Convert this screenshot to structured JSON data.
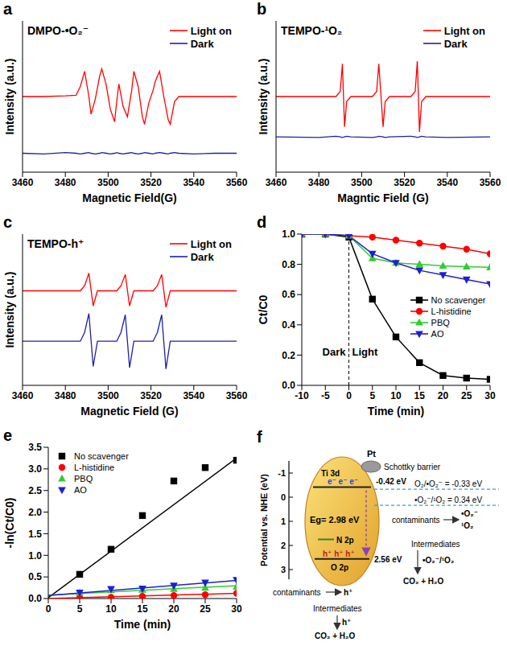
{
  "chart_data": [
    {
      "panel": "a",
      "type": "line",
      "annotations": [
        "DMPO-•O₂⁻"
      ],
      "xlabel": "Magnetic Field(G)",
      "ylabel": "Intensity (a.u.)",
      "x": [
        3460,
        3470,
        3480,
        3485,
        3487,
        3489,
        3491,
        3492,
        3494,
        3496,
        3497,
        3499,
        3501,
        3503,
        3504,
        3505,
        3507,
        3509,
        3511,
        3512,
        3514,
        3516,
        3517,
        3519,
        3521,
        3522,
        3524,
        3526,
        3528,
        3529,
        3531,
        3533,
        3540,
        3550,
        3560
      ],
      "xlim": [
        3460,
        3560
      ],
      "xticks": [
        3460,
        3480,
        3500,
        3520,
        3540,
        3560
      ],
      "ylim": [
        0,
        12
      ],
      "tick_labels": "x",
      "legend": "upper right",
      "series": [
        {
          "name": "Light on",
          "color": "#ff0000",
          "values": [
            6.0,
            6.0,
            6.05,
            6.1,
            6.8,
            8.0,
            6.0,
            4.6,
            5.8,
            7.6,
            8.2,
            7.0,
            5.0,
            4.0,
            5.6,
            7.0,
            5.2,
            4.4,
            6.5,
            8.0,
            6.8,
            4.4,
            3.8,
            5.5,
            6.5,
            7.2,
            8.0,
            6.0,
            4.2,
            3.8,
            5.6,
            6.0,
            6.0,
            6.0,
            6.0
          ]
        },
        {
          "name": "Dark",
          "color": "#1f1fa8",
          "values": [
            1.5,
            1.45,
            1.55,
            1.5,
            1.45,
            1.5,
            1.55,
            1.5,
            1.45,
            1.5,
            1.55,
            1.5,
            1.45,
            1.5,
            1.55,
            1.5,
            1.45,
            1.5,
            1.55,
            1.5,
            1.45,
            1.5,
            1.55,
            1.5,
            1.45,
            1.5,
            1.55,
            1.5,
            1.45,
            1.5,
            1.55,
            1.5,
            1.45,
            1.5,
            1.5
          ]
        }
      ]
    },
    {
      "panel": "b",
      "type": "line",
      "annotations": [
        "TEMPO-¹O₂"
      ],
      "xlabel": "Magntic Field (G)",
      "ylabel": "Intensity (a.u.)",
      "x": [
        3460,
        3480,
        3488,
        3490,
        3491,
        3492,
        3493,
        3495,
        3505,
        3507,
        3508,
        3510,
        3511,
        3513,
        3523,
        3525,
        3526,
        3527,
        3528,
        3530,
        3540,
        3560
      ],
      "xlim": [
        3460,
        3560
      ],
      "xticks": [
        3460,
        3480,
        3500,
        3520,
        3540,
        3560
      ],
      "ylim": [
        0,
        12
      ],
      "tick_labels": "x",
      "legend": "upper right",
      "series": [
        {
          "name": "Light on",
          "color": "#ff0000",
          "values": [
            6,
            6,
            6,
            6.4,
            8.6,
            3.6,
            5.6,
            6,
            6,
            6.4,
            8.6,
            3.6,
            5.6,
            6,
            6,
            6.4,
            8.8,
            3.2,
            5.6,
            6,
            6,
            6
          ]
        },
        {
          "name": "Dark",
          "color": "#1f1fa8",
          "values": [
            2.8,
            2.75,
            2.85,
            2.8,
            2.75,
            2.8,
            2.85,
            2.8,
            2.75,
            2.8,
            2.85,
            2.8,
            2.75,
            2.8,
            2.85,
            2.8,
            2.75,
            2.8,
            2.85,
            2.8,
            2.75,
            2.8
          ]
        }
      ]
    },
    {
      "panel": "c",
      "type": "line",
      "annotations": [
        "TEMPO-h⁺"
      ],
      "xlabel": "Magnetic Field (G)",
      "ylabel": "Intensity (a.u.)",
      "x": [
        3460,
        3480,
        3487,
        3489,
        3491,
        3493,
        3495,
        3500,
        3504,
        3506,
        3508,
        3510,
        3512,
        3517,
        3521,
        3523,
        3525,
        3527,
        3529,
        3535,
        3560
      ],
      "xlim": [
        3460,
        3560
      ],
      "xticks": [
        3460,
        3480,
        3500,
        3520,
        3540,
        3560
      ],
      "ylim": [
        0,
        12
      ],
      "tick_labels": "x",
      "legend": "upper right",
      "series": [
        {
          "name": "Light on",
          "color": "#ff0000",
          "values": [
            7.5,
            7.5,
            7.5,
            7.9,
            8.9,
            6.3,
            7.5,
            7.5,
            7.5,
            7.9,
            8.8,
            6.3,
            7.5,
            7.5,
            7.5,
            7.9,
            8.8,
            6.2,
            7.5,
            7.5,
            7.5
          ]
        },
        {
          "name": "Dark",
          "color": "#1f1fa8",
          "values": [
            3.5,
            3.5,
            3.5,
            4.2,
            5.7,
            1.5,
            3.5,
            3.5,
            3.5,
            4.2,
            5.6,
            1.4,
            3.5,
            3.5,
            3.5,
            4.2,
            5.6,
            1.3,
            3.5,
            3.5,
            3.5
          ]
        }
      ]
    },
    {
      "panel": "d",
      "type": "line",
      "annotations": [
        "Dark",
        "Light"
      ],
      "divider": 0,
      "xlabel": "Time (min)",
      "ylabel": "Ct/C0",
      "x": [
        -10,
        -5,
        0,
        5,
        10,
        15,
        20,
        25,
        30
      ],
      "xlim": [
        -10,
        30
      ],
      "xticks": [
        -10,
        -5,
        0,
        5,
        10,
        15,
        20,
        25,
        30
      ],
      "ylim": [
        0,
        1
      ],
      "yticks": [
        {
          "value": 0,
          "label": "0.0"
        },
        0.2,
        0.4,
        0.6,
        0.8,
        {
          "value": 1,
          "label": "1.0"
        }
      ],
      "legend": "right",
      "series": [
        {
          "name": "No scavenger",
          "color": "#000000",
          "marker": "square",
          "values": [
            1.0,
            1.0,
            0.98,
            0.57,
            0.32,
            0.15,
            0.065,
            0.048,
            0.04
          ]
        },
        {
          "name": "L-histidine",
          "color": "#ff0000",
          "marker": "circle",
          "values": [
            1.0,
            1.0,
            0.99,
            0.98,
            0.96,
            0.94,
            0.92,
            0.9,
            0.87
          ]
        },
        {
          "name": "PBQ",
          "color": "#33cc33",
          "marker": "triangle",
          "values": [
            1.0,
            1.0,
            0.99,
            0.84,
            0.81,
            0.8,
            0.79,
            0.785,
            0.78
          ]
        },
        {
          "name": "AO",
          "color": "#1f1fcf",
          "marker": "triangle_down",
          "values": [
            1.0,
            1.0,
            0.99,
            0.87,
            0.81,
            0.76,
            0.73,
            0.7,
            0.67
          ]
        }
      ]
    },
    {
      "panel": "e",
      "type": "scatter",
      "xlabel": "Time (min)",
      "ylabel": "-ln(Ct/C0)",
      "x": [
        5,
        10,
        15,
        20,
        25,
        30
      ],
      "xlim": [
        0,
        30
      ],
      "xticks": [
        0,
        5,
        10,
        15,
        20,
        25,
        30
      ],
      "ylim": [
        0,
        3.5
      ],
      "yticks": [
        {
          "value": 0,
          "label": "0.0"
        },
        0.5,
        {
          "value": 1,
          "label": "1.0"
        },
        1.5,
        {
          "value": 2,
          "label": "2.0"
        },
        2.5,
        {
          "value": 3,
          "label": "3.0"
        },
        3.5
      ],
      "legend": "upper left",
      "series": [
        {
          "name": "No scavenger",
          "color": "#000000",
          "marker": "square",
          "values": [
            0.56,
            1.14,
            1.92,
            2.72,
            3.03,
            3.2
          ],
          "fit": {
            "x": [
              0,
              30
            ],
            "values": [
              0.02,
              3.25
            ]
          }
        },
        {
          "name": "L-histidine",
          "color": "#ff0000",
          "marker": "circle",
          "values": [
            0.02,
            0.03,
            0.05,
            0.07,
            0.09,
            0.12
          ],
          "fit": {
            "x": [
              0,
              30
            ],
            "values": [
              0.0,
              0.12
            ]
          }
        },
        {
          "name": "PBQ",
          "color": "#33cc33",
          "marker": "triangle",
          "values": [
            0.13,
            0.19,
            0.2,
            0.22,
            0.25,
            0.27
          ],
          "fit": {
            "x": [
              0,
              30
            ],
            "values": [
              0.08,
              0.3
            ]
          }
        },
        {
          "name": "AO",
          "color": "#1f1fcf",
          "marker": "triangle_down",
          "values": [
            0.14,
            0.22,
            0.23,
            0.3,
            0.37,
            0.43
          ],
          "fit": {
            "x": [
              0,
              30
            ],
            "values": [
              0.07,
              0.42
            ]
          }
        }
      ]
    }
  ],
  "diagram": {
    "panel": "f",
    "axis_label": "Potential vs. NHE (eV)",
    "ylim": [
      -1.5,
      3.4
    ],
    "yticks": [
      -1,
      0,
      1,
      2,
      3
    ],
    "conduction_band": {
      "label": "Ti 3d",
      "potential": -0.42,
      "value_label": "-0.42 eV",
      "carriers": "e⁻ e⁻ e⁻"
    },
    "valence_band": {
      "label": "O 2p",
      "potential": 2.56,
      "value_label": "2.56 eV",
      "carriers": "h⁺ h⁺ h⁺"
    },
    "dopant_level": {
      "label": "N 2p",
      "potential": 1.75
    },
    "band_gap": "Eg= 2.98 eV",
    "cocatalyst": "Pt",
    "junction": "Schottky barrier",
    "redox_levels": [
      {
        "potential": -0.33,
        "label": "O₂/•O₂⁻ = -0.33 eV"
      },
      {
        "potential": 0.34,
        "label": "•O₂⁻/¹O₂ = 0.34 eV"
      }
    ],
    "reduction_path": {
      "reactant": "contaminants",
      "species": [
        "•O₂⁻",
        "¹O₂"
      ],
      "intermediate": "Intermediates",
      "agent": "•O₂⁻/¹O₂",
      "product": "CO₂ + H₂O"
    },
    "oxidation_path": {
      "reactant": "contaminants",
      "species": "h⁺",
      "intermediate": "Intermediates",
      "agent": "h⁺",
      "product": "CO₂ + H₂O"
    }
  }
}
